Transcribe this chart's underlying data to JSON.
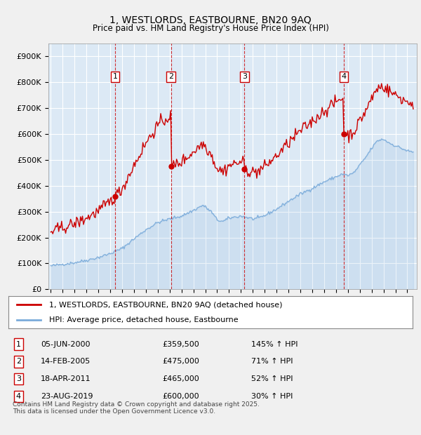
{
  "title": "1, WESTLORDS, EASTBOURNE, BN20 9AQ",
  "subtitle": "Price paid vs. HM Land Registry's House Price Index (HPI)",
  "background_color": "#f0f0f0",
  "plot_bg_color": "#dce9f5",
  "grid_color": "#ffffff",
  "red_line_color": "#cc0000",
  "blue_line_color": "#7aabda",
  "ylim": [
    0,
    950000
  ],
  "yticks": [
    0,
    100000,
    200000,
    300000,
    400000,
    500000,
    600000,
    700000,
    800000,
    900000
  ],
  "ytick_labels": [
    "£0",
    "£100K",
    "£200K",
    "£300K",
    "£400K",
    "£500K",
    "£600K",
    "£700K",
    "£800K",
    "£900K"
  ],
  "sale_year_floats": [
    2000.42,
    2005.12,
    2011.3,
    2019.65
  ],
  "sale_prices": [
    359500,
    475000,
    465000,
    600000
  ],
  "sale_labels": [
    "1",
    "2",
    "3",
    "4"
  ],
  "sale_annotations": [
    {
      "label": "1",
      "date": "05-JUN-2000",
      "price": "£359,500",
      "hpi": "145% ↑ HPI"
    },
    {
      "label": "2",
      "date": "14-FEB-2005",
      "price": "£475,000",
      "hpi": "71% ↑ HPI"
    },
    {
      "label": "3",
      "date": "18-APR-2011",
      "price": "£465,000",
      "hpi": "52% ↑ HPI"
    },
    {
      "label": "4",
      "date": "23-AUG-2019",
      "price": "£600,000",
      "hpi": "30% ↑ HPI"
    }
  ],
  "legend_entries": [
    "1, WESTLORDS, EASTBOURNE, BN20 9AQ (detached house)",
    "HPI: Average price, detached house, Eastbourne"
  ],
  "footnote": "Contains HM Land Registry data © Crown copyright and database right 2025.\nThis data is licensed under the Open Government Licence v3.0.",
  "x_start_year": 1995,
  "x_end_year": 2025
}
